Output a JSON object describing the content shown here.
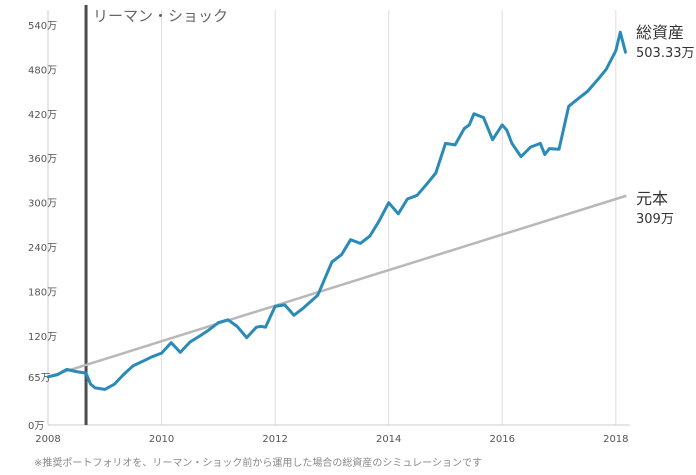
{
  "chart_data": {
    "type": "line",
    "title": "",
    "xlabel": "",
    "ylabel": "",
    "x_ticks": [
      "2008",
      "2010",
      "2012",
      "2014",
      "2016",
      "2018"
    ],
    "y_ticks": [
      "0万",
      "65万",
      "120万",
      "180万",
      "240万",
      "300万",
      "360万",
      "420万",
      "480万",
      "540万"
    ],
    "y_tick_values": [
      0,
      65,
      120,
      180,
      240,
      300,
      360,
      420,
      480,
      540
    ],
    "xlim": [
      2008,
      2018.25
    ],
    "ylim": [
      0,
      560
    ],
    "event": {
      "x": 2008.67,
      "label": "リーマン・ショック"
    },
    "footnote": "※推奨ポートフォリオを、リーマン・ショック前から運用した場合の総資産のシミュレーションです",
    "series": [
      {
        "name": "総資産",
        "end_label": "503.33万",
        "color": "#2a8ab8",
        "x": [
          2008.0,
          2008.17,
          2008.33,
          2008.5,
          2008.67,
          2008.75,
          2008.83,
          2009.0,
          2009.17,
          2009.33,
          2009.5,
          2009.67,
          2009.83,
          2010.0,
          2010.17,
          2010.33,
          2010.5,
          2010.67,
          2010.83,
          2011.0,
          2011.17,
          2011.33,
          2011.5,
          2011.67,
          2011.75,
          2011.83,
          2012.0,
          2012.17,
          2012.33,
          2012.5,
          2012.75,
          2013.0,
          2013.17,
          2013.33,
          2013.5,
          2013.67,
          2013.83,
          2014.0,
          2014.17,
          2014.33,
          2014.5,
          2014.67,
          2014.83,
          2015.0,
          2015.17,
          2015.33,
          2015.42,
          2015.5,
          2015.67,
          2015.83,
          2016.0,
          2016.08,
          2016.17,
          2016.33,
          2016.5,
          2016.67,
          2016.75,
          2016.83,
          2017.0,
          2017.17,
          2017.33,
          2017.5,
          2017.67,
          2017.83,
          2018.0,
          2018.08,
          2018.17
        ],
        "values": [
          65,
          68,
          75,
          72,
          70,
          55,
          50,
          48,
          55,
          68,
          80,
          86,
          92,
          97,
          111,
          98,
          112,
          120,
          128,
          138,
          142,
          133,
          118,
          132,
          133,
          132,
          160,
          162,
          148,
          158,
          175,
          220,
          230,
          250,
          245,
          255,
          275,
          300,
          285,
          305,
          310,
          325,
          340,
          380,
          378,
          400,
          405,
          420,
          415,
          385,
          405,
          398,
          380,
          362,
          375,
          380,
          365,
          373,
          372,
          430,
          440,
          450,
          465,
          480,
          505,
          530,
          503
        ]
      },
      {
        "name": "元本",
        "end_label": "309万",
        "color": "#b8b8b8",
        "x": [
          2008.0,
          2018.17
        ],
        "values": [
          65,
          309
        ]
      }
    ]
  }
}
